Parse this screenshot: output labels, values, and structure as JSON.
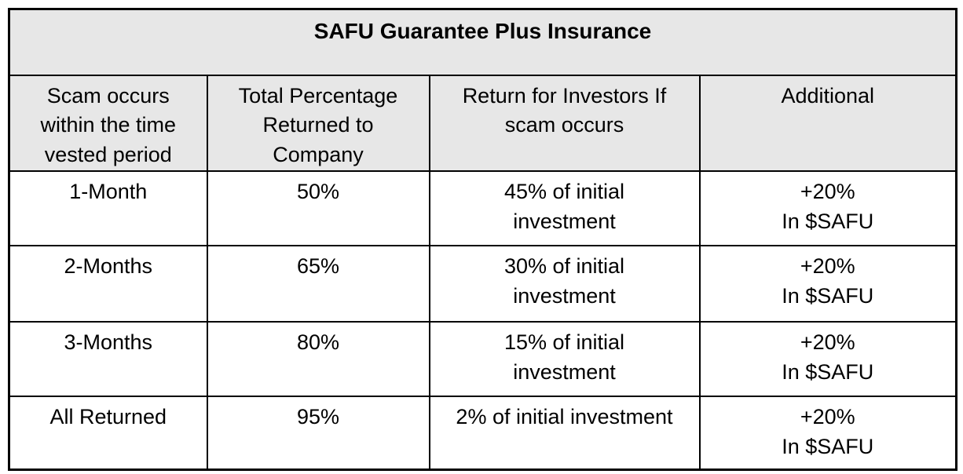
{
  "table": {
    "title": "SAFU Guarantee Plus Insurance",
    "header_bg": "#e7e7e7",
    "border_color": "#000000",
    "columns": {
      "period": "Scam occurs\nwithin the time\nvested period",
      "returned": "Total Percentage\nReturned to\nCompany",
      "investor_return": "Return for Investors If\nscam occurs",
      "additional": "Additional"
    },
    "rows": [
      {
        "period": "1-Month",
        "returned": "50%",
        "investor_return": "45% of initial\ninvestment",
        "additional": "+20%\nIn $SAFU"
      },
      {
        "period": "2-Months",
        "returned": "65%",
        "investor_return": "30% of initial\ninvestment",
        "additional": "+20%\nIn $SAFU"
      },
      {
        "period": "3-Months",
        "returned": "80%",
        "investor_return": "15% of initial\ninvestment",
        "additional": "+20%\nIn $SAFU"
      },
      {
        "period": "All Returned",
        "returned": "95%",
        "investor_return": "2% of initial investment",
        "additional": "+20%\nIn $SAFU"
      }
    ]
  }
}
